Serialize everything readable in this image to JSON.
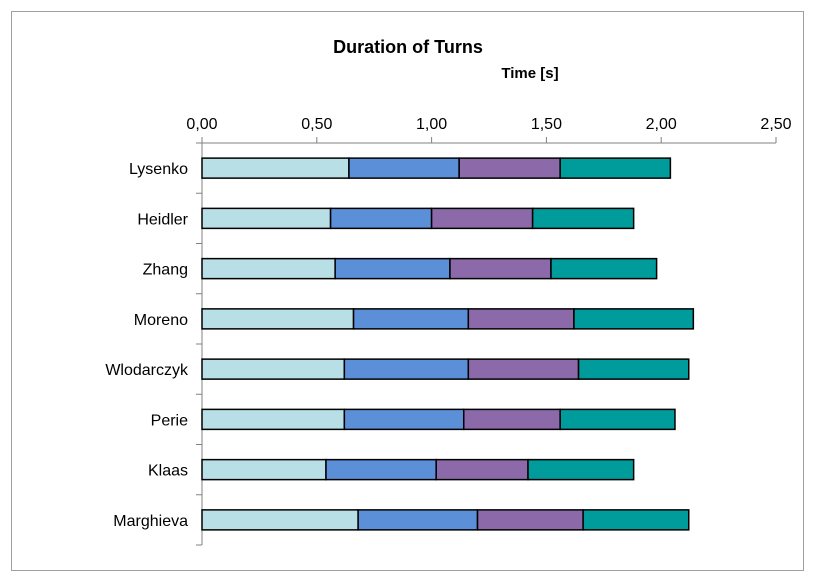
{
  "chart_data": {
    "type": "bar",
    "orientation": "horizontal",
    "stacked": true,
    "title": "Duration of Turns",
    "xlabel": "Time [s]",
    "ylabel": "",
    "xlim": [
      0,
      2.5
    ],
    "x_ticks": [
      "0,00",
      "0,50",
      "1,00",
      "1,50",
      "2,00",
      "2,50"
    ],
    "x_axis_position": "top",
    "grid": false,
    "legend": "none",
    "categories": [
      "Lysenko",
      "Heidler",
      "Zhang",
      "Moreno",
      "Wlodarczyk",
      "Perie",
      "Klaas",
      "Marghieva"
    ],
    "series": [
      {
        "color": "#b8dfe6",
        "values": [
          0.64,
          0.56,
          0.58,
          0.66,
          0.62,
          0.62,
          0.54,
          0.68
        ]
      },
      {
        "color": "#5b8fd8",
        "values": [
          0.48,
          0.44,
          0.5,
          0.5,
          0.54,
          0.52,
          0.48,
          0.52
        ]
      },
      {
        "color": "#8c6aaa",
        "values": [
          0.44,
          0.44,
          0.44,
          0.46,
          0.48,
          0.42,
          0.4,
          0.46
        ]
      },
      {
        "color": "#009b9b",
        "values": [
          0.48,
          0.44,
          0.46,
          0.52,
          0.48,
          0.5,
          0.46,
          0.46
        ]
      }
    ]
  }
}
